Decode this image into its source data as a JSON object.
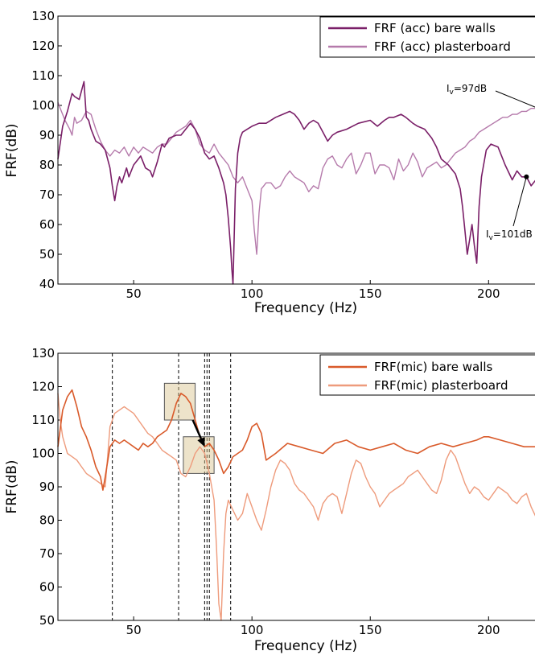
{
  "chart_data": [
    {
      "type": "line",
      "title": "",
      "xlabel": "Frequency (Hz)",
      "ylabel": "FRF(dB)",
      "xlim": [
        18,
        222
      ],
      "ylim": [
        40,
        130
      ],
      "xticks": [
        50,
        100,
        150,
        200
      ],
      "yticks": [
        40,
        50,
        60,
        70,
        80,
        90,
        100,
        110,
        120,
        130
      ],
      "legend_position": "top-right",
      "series": [
        {
          "name": "FRF (acc) bare walls",
          "color": "#7a1f68",
          "x": [
            18,
            20,
            22,
            24,
            25,
            27,
            28,
            29,
            30,
            31,
            32,
            34,
            36,
            38,
            40,
            41,
            42,
            43,
            44,
            45,
            47,
            48,
            50,
            53,
            55,
            57,
            58,
            60,
            62,
            63,
            65,
            68,
            70,
            72,
            74,
            76,
            78,
            80,
            82,
            84,
            86,
            88,
            89,
            90,
            91,
            91.5,
            92,
            92.5,
            93,
            94,
            95,
            96,
            98,
            100,
            103,
            106,
            110,
            113,
            116,
            118,
            120,
            122,
            124,
            126,
            128,
            130,
            132,
            134,
            136,
            140,
            145,
            150,
            153,
            156,
            158,
            160,
            163,
            165,
            168,
            170,
            173,
            176,
            178,
            180,
            183,
            186,
            188,
            189,
            190,
            191,
            192,
            193,
            194,
            195,
            196,
            197,
            199,
            201,
            204,
            207,
            210,
            212,
            214,
            216,
            218,
            220,
            222
          ],
          "y": [
            82,
            93,
            98,
            104,
            103,
            102,
            105,
            108,
            96,
            95,
            92,
            88,
            87,
            85,
            79,
            73,
            68,
            73,
            76,
            74,
            79,
            76,
            80,
            83,
            79,
            78,
            76,
            81,
            87,
            86,
            89,
            90,
            90,
            92,
            94,
            92,
            89,
            84,
            82,
            83,
            79,
            74,
            70,
            62,
            52,
            45,
            40,
            56,
            72,
            84,
            89,
            91,
            92,
            93,
            94,
            94,
            96,
            97,
            98,
            97,
            95,
            92,
            94,
            95,
            94,
            91,
            88,
            90,
            91,
            92,
            94,
            95,
            93,
            95,
            96,
            96,
            97,
            96,
            94,
            93,
            92,
            89,
            86,
            82,
            80,
            77,
            72,
            66,
            58,
            50,
            55,
            60,
            53,
            47,
            66,
            76,
            85,
            87,
            86,
            80,
            75,
            78,
            76,
            76,
            73,
            75,
            73
          ]
        },
        {
          "name": "FRF (acc) plasterboard",
          "color": "#b57aab",
          "x": [
            18,
            19,
            21,
            23,
            24,
            25,
            26,
            28,
            30,
            32,
            34,
            36,
            38,
            40,
            42,
            44,
            46,
            48,
            50,
            52,
            54,
            56,
            58,
            60,
            62,
            64,
            66,
            68,
            70,
            72,
            74,
            76,
            78,
            80,
            82,
            84,
            86,
            88,
            90,
            92,
            94,
            96,
            98,
            100,
            101,
            102,
            103,
            104,
            105,
            106,
            108,
            110,
            112,
            114,
            116,
            118,
            120,
            122,
            124,
            126,
            128,
            130,
            132,
            134,
            136,
            138,
            140,
            142,
            144,
            146,
            148,
            150,
            152,
            154,
            156,
            158,
            160,
            162,
            164,
            166,
            168,
            170,
            172,
            174,
            176,
            178,
            180,
            182,
            184,
            186,
            188,
            190,
            192,
            194,
            196,
            198,
            200,
            202,
            204,
            206,
            208,
            210,
            212,
            214,
            216,
            218,
            220,
            222
          ],
          "y": [
            101,
            99,
            95,
            92,
            90,
            96,
            94,
            95,
            98,
            97,
            92,
            88,
            85,
            83,
            85,
            84,
            86,
            83,
            86,
            84,
            86,
            85,
            84,
            86,
            87,
            87,
            89,
            91,
            92,
            93,
            95,
            92,
            87,
            85,
            84,
            87,
            84,
            82,
            80,
            76,
            74,
            76,
            72,
            68,
            58,
            50,
            64,
            72,
            73,
            74,
            74,
            72,
            73,
            76,
            78,
            76,
            75,
            74,
            71,
            73,
            72,
            79,
            82,
            83,
            80,
            79,
            82,
            84,
            77,
            80,
            84,
            84,
            77,
            80,
            80,
            79,
            75,
            82,
            78,
            80,
            84,
            81,
            76,
            79,
            80,
            81,
            79,
            80,
            82,
            84,
            85,
            86,
            88,
            89,
            91,
            92,
            93,
            94,
            95,
            96,
            96,
            97,
            97,
            98,
            98,
            99,
            99,
            100
          ]
        }
      ],
      "annotations": [
        {
          "text_main": "I",
          "text_sub": "v",
          "text_rest": "=97dB",
          "x": 221,
          "y": 99
        },
        {
          "text_main": "I",
          "text_sub": "v",
          "text_rest": "=101dB",
          "x": 216,
          "y": 76
        }
      ]
    },
    {
      "type": "line",
      "title": "",
      "xlabel": "Frequency (Hz)",
      "ylabel": "FRF(dB)",
      "xlim": [
        18,
        222
      ],
      "ylim": [
        50,
        130
      ],
      "xticks": [
        50,
        100,
        150,
        200
      ],
      "yticks": [
        50,
        60,
        70,
        80,
        90,
        100,
        110,
        120,
        130
      ],
      "legend_position": "top-right",
      "vertical_dashed_lines_x": [
        41,
        69,
        80,
        81,
        82,
        91
      ],
      "highlight_boxes": [
        {
          "x": [
            63,
            76
          ],
          "y": [
            110,
            121
          ]
        },
        {
          "x": [
            71,
            84
          ],
          "y": [
            94,
            105
          ]
        }
      ],
      "arrow": {
        "from": [
          75,
          110
        ],
        "to": [
          80,
          102
        ]
      },
      "series": [
        {
          "name": "FRF(mic) bare walls",
          "color": "#d95a2a",
          "x": [
            18,
            20,
            22,
            24,
            26,
            28,
            30,
            32,
            34,
            36,
            37,
            38,
            40,
            42,
            44,
            46,
            48,
            50,
            52,
            54,
            56,
            58,
            60,
            62,
            64,
            66,
            68,
            70,
            72,
            74,
            76,
            78,
            80,
            82,
            84,
            86,
            88,
            90,
            92,
            94,
            96,
            98,
            100,
            102,
            104,
            106,
            110,
            115,
            120,
            125,
            130,
            135,
            140,
            145,
            150,
            155,
            160,
            165,
            170,
            175,
            180,
            185,
            190,
            195,
            198,
            200,
            205,
            210,
            215,
            220,
            222
          ],
          "y": [
            102,
            113,
            117,
            119,
            114,
            108,
            105,
            101,
            96,
            93,
            89,
            93,
            102,
            104,
            103,
            104,
            103,
            102,
            101,
            103,
            102,
            103,
            105,
            106,
            107,
            110,
            115,
            118,
            117,
            115,
            110,
            105,
            102,
            103,
            101,
            98,
            94,
            96,
            99,
            100,
            101,
            104,
            108,
            109,
            106,
            98,
            100,
            103,
            102,
            101,
            100,
            103,
            104,
            102,
            101,
            102,
            103,
            101,
            100,
            102,
            103,
            102,
            103,
            104,
            105,
            105,
            104,
            103,
            102,
            102,
            101
          ]
        },
        {
          "name": "FRF(mic) plasterboard",
          "color": "#ee9b7c",
          "x": [
            18,
            19,
            20,
            22,
            24,
            26,
            28,
            30,
            32,
            34,
            36,
            38,
            40,
            42,
            44,
            46,
            48,
            50,
            52,
            54,
            56,
            58,
            60,
            62,
            64,
            66,
            68,
            70,
            72,
            74,
            76,
            78,
            80,
            82,
            84,
            85,
            86,
            87,
            88,
            89,
            90,
            92,
            94,
            96,
            98,
            100,
            102,
            104,
            106,
            108,
            110,
            112,
            114,
            116,
            118,
            120,
            122,
            124,
            126,
            128,
            130,
            132,
            134,
            136,
            138,
            140,
            142,
            144,
            146,
            148,
            150,
            152,
            154,
            156,
            158,
            160,
            162,
            164,
            166,
            168,
            170,
            172,
            174,
            176,
            178,
            180,
            182,
            184,
            186,
            188,
            190,
            192,
            194,
            196,
            198,
            200,
            202,
            204,
            206,
            208,
            210,
            212,
            214,
            216,
            218,
            220,
            222
          ],
          "y": [
            118,
            110,
            105,
            100,
            99,
            98,
            96,
            94,
            93,
            92,
            91,
            90,
            108,
            112,
            113,
            114,
            113,
            112,
            110,
            108,
            106,
            105,
            103,
            101,
            100,
            99,
            98,
            94,
            93,
            96,
            100,
            102,
            100,
            94,
            86,
            72,
            55,
            50,
            70,
            82,
            86,
            83,
            80,
            82,
            88,
            84,
            80,
            77,
            83,
            90,
            95,
            98,
            97,
            95,
            91,
            89,
            88,
            86,
            84,
            80,
            85,
            87,
            88,
            87,
            82,
            88,
            94,
            98,
            97,
            93,
            90,
            88,
            84,
            86,
            88,
            89,
            90,
            91,
            93,
            94,
            95,
            93,
            91,
            89,
            88,
            92,
            98,
            101,
            99,
            95,
            91,
            88,
            90,
            89,
            87,
            86,
            88,
            90,
            89,
            88,
            86,
            85,
            87,
            88,
            84,
            81,
            86
          ]
        }
      ],
      "annotations": []
    }
  ]
}
